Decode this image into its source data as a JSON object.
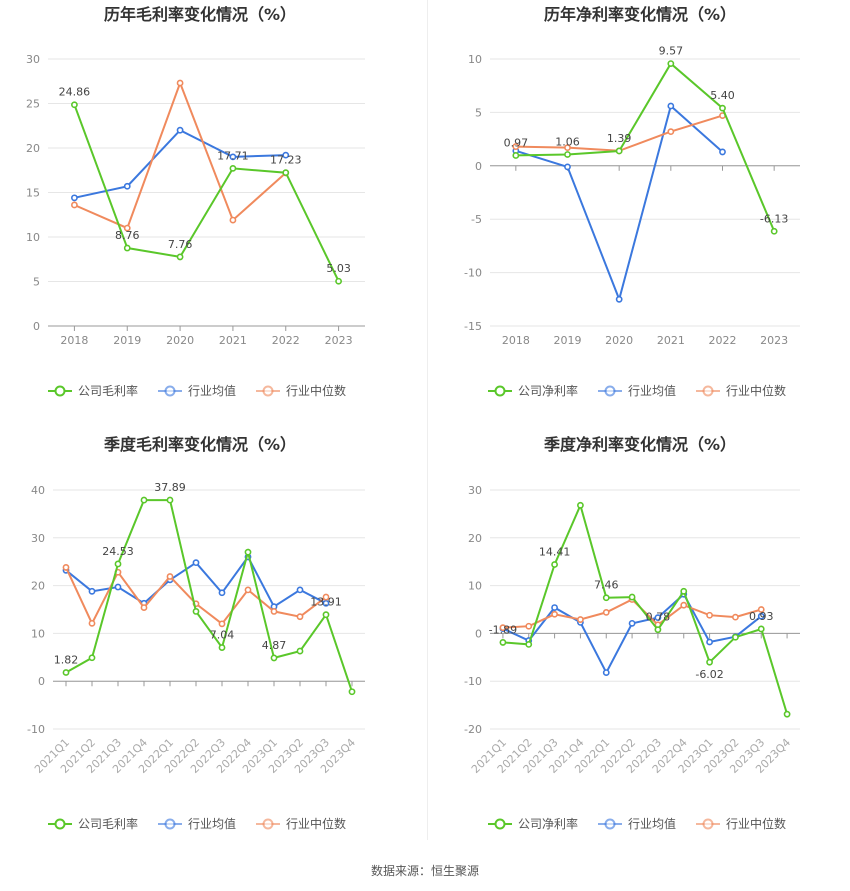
{
  "footer": {
    "source": "数据来源：恒生聚源"
  },
  "colors": {
    "company": "#5ac72a",
    "avg": "#3b78de",
    "median": "#f08a5d",
    "grid": "#e6e6e6",
    "axis": "#999999",
    "tick": "#888888",
    "title": "#333333",
    "label": "#444444"
  },
  "chart_data": [
    {
      "id": "annual-gross",
      "type": "line",
      "title": "历年毛利率变化情况（%）",
      "categories": [
        "2018",
        "2019",
        "2020",
        "2021",
        "2022",
        "2023"
      ],
      "ylim": [
        0,
        30
      ],
      "yticks": [
        0,
        5,
        10,
        15,
        20,
        25,
        30
      ],
      "grid": true,
      "legend_position": "bottom",
      "series": [
        {
          "key": "company",
          "name": "公司毛利率",
          "values": [
            24.86,
            8.76,
            7.76,
            17.71,
            17.23,
            5.03
          ]
        },
        {
          "key": "avg",
          "name": "行业均值",
          "values": [
            14.4,
            15.7,
            22.0,
            19.0,
            19.2,
            null
          ]
        },
        {
          "key": "median",
          "name": "行业中位数",
          "values": [
            13.6,
            11.0,
            27.3,
            11.9,
            17.2,
            null
          ]
        }
      ],
      "data_labels": [
        {
          "index": 0,
          "text": "24.86",
          "pos": "above"
        },
        {
          "index": 1,
          "text": "8.76",
          "pos": "above"
        },
        {
          "index": 2,
          "text": "7.76",
          "pos": "above"
        },
        {
          "index": 3,
          "text": "17.71",
          "pos": "above"
        },
        {
          "index": 4,
          "text": "17.23",
          "pos": "above"
        },
        {
          "index": 5,
          "text": "5.03",
          "pos": "above"
        }
      ]
    },
    {
      "id": "annual-net",
      "type": "line",
      "title": "历年净利率变化情况（%）",
      "categories": [
        "2018",
        "2019",
        "2020",
        "2021",
        "2022",
        "2023"
      ],
      "ylim": [
        -15,
        10
      ],
      "yticks": [
        -15,
        -10,
        -5,
        0,
        5,
        10
      ],
      "grid": true,
      "legend_position": "bottom",
      "series": [
        {
          "key": "company",
          "name": "公司净利率",
          "values": [
            0.97,
            1.06,
            1.39,
            9.57,
            5.4,
            -6.13
          ]
        },
        {
          "key": "avg",
          "name": "行业均值",
          "values": [
            1.4,
            -0.1,
            -12.5,
            5.6,
            1.3,
            null
          ]
        },
        {
          "key": "median",
          "name": "行业中位数",
          "values": [
            1.8,
            1.7,
            1.4,
            3.2,
            4.7,
            null
          ]
        }
      ],
      "data_labels": [
        {
          "index": 0,
          "text": "0.97",
          "pos": "above"
        },
        {
          "index": 1,
          "text": "1.06",
          "pos": "above"
        },
        {
          "index": 2,
          "text": "1.39",
          "pos": "above"
        },
        {
          "index": 3,
          "text": "9.57",
          "pos": "above"
        },
        {
          "index": 4,
          "text": "5.40",
          "pos": "above"
        },
        {
          "index": 5,
          "text": "-6.13",
          "pos": "above"
        }
      ]
    },
    {
      "id": "quarterly-gross",
      "type": "line",
      "title": "季度毛利率变化情况（%）",
      "categories": [
        "2021Q1",
        "2021Q2",
        "2021Q3",
        "2021Q4",
        "2022Q1",
        "2022Q2",
        "2022Q3",
        "2022Q4",
        "2023Q1",
        "2023Q2",
        "2023Q3",
        "2023Q4"
      ],
      "ylim": [
        -10,
        40
      ],
      "yticks": [
        -10,
        0,
        10,
        20,
        30,
        40
      ],
      "grid": true,
      "legend_position": "bottom",
      "rotate_x_labels": true,
      "series": [
        {
          "key": "company",
          "name": "公司毛利率",
          "values": [
            1.82,
            4.9,
            24.53,
            37.89,
            37.89,
            14.6,
            7.04,
            27.0,
            4.87,
            6.3,
            13.91,
            -2.2
          ]
        },
        {
          "key": "avg",
          "name": "行业均值",
          "values": [
            23.2,
            18.8,
            19.7,
            16.3,
            21.2,
            24.8,
            18.5,
            26.0,
            15.6,
            19.1,
            16.3,
            null
          ]
        },
        {
          "key": "median",
          "name": "行业中位数",
          "values": [
            23.8,
            12.1,
            22.8,
            15.4,
            21.9,
            16.2,
            12.0,
            19.1,
            14.6,
            13.5,
            17.6,
            null
          ]
        }
      ],
      "data_labels": [
        {
          "index": 0,
          "text": "1.82",
          "pos": "above"
        },
        {
          "index": 2,
          "text": "24.53",
          "pos": "above"
        },
        {
          "index": 4,
          "text": "37.89",
          "pos": "above"
        },
        {
          "index": 6,
          "text": "7.04",
          "pos": "above"
        },
        {
          "index": 8,
          "text": "4.87",
          "pos": "above"
        },
        {
          "index": 10,
          "text": "13.91",
          "pos": "above"
        }
      ]
    },
    {
      "id": "quarterly-net",
      "type": "line",
      "title": "季度净利率变化情况（%）",
      "categories": [
        "2021Q1",
        "2021Q2",
        "2021Q3",
        "2021Q4",
        "2022Q1",
        "2022Q2",
        "2022Q3",
        "2022Q4",
        "2023Q1",
        "2023Q2",
        "2023Q3",
        "2023Q4"
      ],
      "ylim": [
        -20,
        30
      ],
      "yticks": [
        -20,
        -10,
        0,
        10,
        20,
        30
      ],
      "grid": true,
      "legend_position": "bottom",
      "rotate_x_labels": true,
      "series": [
        {
          "key": "company",
          "name": "公司净利率",
          "values": [
            -1.89,
            -2.3,
            14.41,
            26.8,
            7.46,
            7.6,
            0.78,
            8.8,
            -6.02,
            -0.8,
            0.93,
            -16.9
          ]
        },
        {
          "key": "avg",
          "name": "行业均值",
          "values": [
            1.0,
            -1.5,
            5.4,
            2.3,
            -8.2,
            2.1,
            3.3,
            8.2,
            -1.8,
            -0.7,
            3.6,
            null
          ]
        },
        {
          "key": "median",
          "name": "行业中位数",
          "values": [
            1.2,
            1.5,
            4.0,
            2.9,
            4.4,
            7.1,
            1.8,
            5.9,
            3.8,
            3.4,
            5.0,
            null
          ]
        }
      ],
      "data_labels": [
        {
          "index": 0,
          "text": "-1.89",
          "pos": "above"
        },
        {
          "index": 2,
          "text": "14.41",
          "pos": "above"
        },
        {
          "index": 4,
          "text": "7.46",
          "pos": "above"
        },
        {
          "index": 6,
          "text": "0.78",
          "pos": "above"
        },
        {
          "index": 8,
          "text": "-6.02",
          "pos": "below"
        },
        {
          "index": 10,
          "text": "0.93",
          "pos": "above"
        }
      ]
    }
  ]
}
